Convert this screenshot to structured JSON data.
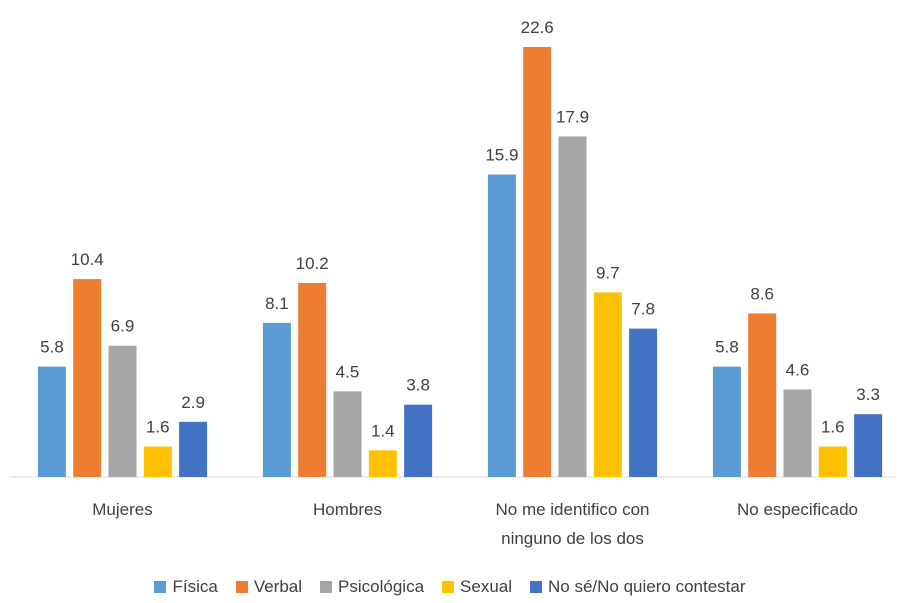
{
  "chart_data": {
    "type": "bar",
    "categories": [
      "Mujeres",
      "Hombres",
      "No me identifico con ninguno de los dos",
      "No especificado"
    ],
    "series": [
      {
        "name": "Física",
        "color": "#5b9bd5",
        "values": [
          5.8,
          8.1,
          15.9,
          5.8
        ]
      },
      {
        "name": "Verbal",
        "color": "#ed7d31",
        "values": [
          10.4,
          10.2,
          22.6,
          8.6
        ]
      },
      {
        "name": "Psicológica",
        "color": "#a5a5a5",
        "values": [
          6.9,
          4.5,
          17.9,
          4.6
        ]
      },
      {
        "name": "Sexual",
        "color": "#ffc000",
        "values": [
          1.6,
          1.4,
          9.7,
          1.6
        ]
      },
      {
        "name": "No sé/No quiero contestar",
        "color": "#4472c4",
        "values": [
          2.9,
          3.8,
          7.8,
          3.3
        ]
      }
    ],
    "legend": "bottom"
  }
}
